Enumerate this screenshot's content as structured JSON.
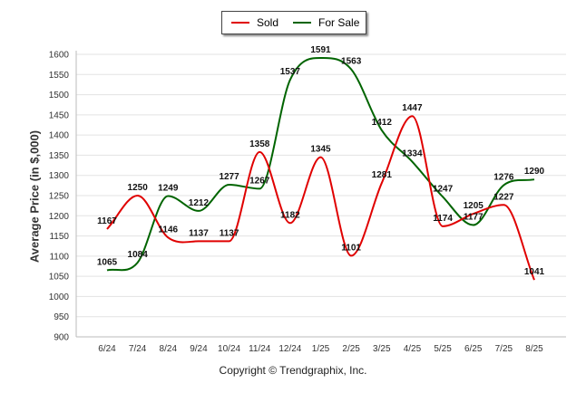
{
  "chart_data": {
    "type": "line",
    "categories": [
      "6/24",
      "7/24",
      "8/24",
      "9/24",
      "10/24",
      "11/24",
      "12/24",
      "1/25",
      "2/25",
      "3/25",
      "4/25",
      "5/25",
      "6/25",
      "7/25",
      "8/25"
    ],
    "series": [
      {
        "name": "Sold",
        "color": "#e00000",
        "values": [
          1167,
          1250,
          1146,
          1137,
          1137,
          1358,
          1182,
          1345,
          1101,
          1281,
          1447,
          1174,
          1205,
          1227,
          1041
        ]
      },
      {
        "name": "For Sale",
        "color": "#006400",
        "values": [
          1065,
          1084,
          1249,
          1212,
          1277,
          1267,
          1537,
          1591,
          1563,
          1412,
          1334,
          1247,
          1177,
          1276,
          1290
        ]
      }
    ],
    "ylabel": "Average Price (in $,000)",
    "ylim": [
      900,
      1600
    ],
    "yticks": [
      900,
      950,
      1000,
      1050,
      1100,
      1150,
      1200,
      1250,
      1300,
      1350,
      1400,
      1450,
      1500,
      1550,
      1600
    ],
    "grid": "horizontal",
    "legend_position": "top-center"
  },
  "legend": {
    "sold_label": "Sold",
    "forsale_label": "For Sale"
  },
  "footer": {
    "copyright": "Copyright © Trendgraphix, Inc."
  }
}
